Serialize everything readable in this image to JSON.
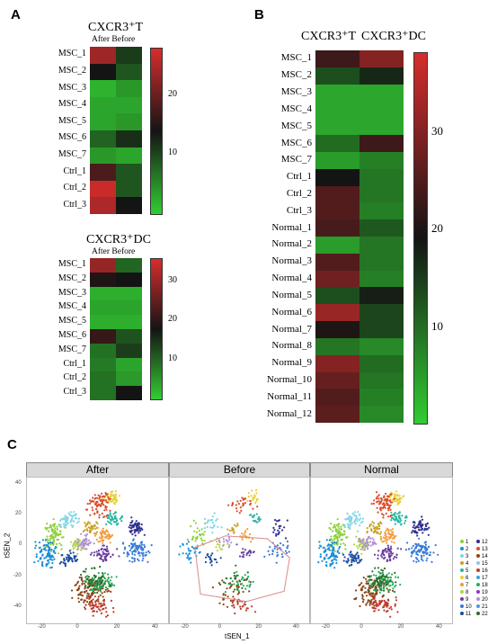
{
  "panels": {
    "a": "A",
    "b": "B",
    "c": "C"
  },
  "heatmap_a1": {
    "title": "CXCR3⁺T",
    "subtitle": "After Before",
    "rows": [
      "MSC_1",
      "MSC_2",
      "MSC_3",
      "MSC_4",
      "MSC_5",
      "MSC_6",
      "MSC_7",
      "Ctrl_1",
      "Ctrl_2",
      "Ctrl_3"
    ],
    "values": [
      [
        24,
        11
      ],
      [
        14,
        9
      ],
      [
        2,
        4
      ],
      [
        3,
        3
      ],
      [
        3,
        4
      ],
      [
        8,
        12
      ],
      [
        4,
        3
      ],
      [
        18,
        9
      ],
      [
        27,
        9
      ],
      [
        25,
        14
      ]
    ],
    "scale": {
      "min": 0,
      "max": 28,
      "ticks": [
        "20",
        "10"
      ],
      "tick_values": [
        20,
        10
      ]
    }
  },
  "heatmap_a2": {
    "title": "CXCR3⁺DC",
    "subtitle": "After Before",
    "rows": [
      "MSC_1",
      "MSC_2",
      "MSC_3",
      "MSC_4",
      "MSC_5",
      "MSC_6",
      "MSC_7",
      "Ctrl_1",
      "Ctrl_2",
      "Ctrl_3"
    ],
    "values": [
      [
        30,
        10
      ],
      [
        19,
        18
      ],
      [
        3,
        3
      ],
      [
        4,
        4
      ],
      [
        3,
        3
      ],
      [
        21,
        12
      ],
      [
        9,
        14
      ],
      [
        8,
        4
      ],
      [
        9,
        5
      ],
      [
        9,
        18
      ]
    ],
    "scale": {
      "min": 0,
      "max": 36,
      "ticks": [
        "30",
        "20",
        "10"
      ],
      "tick_values": [
        30,
        20,
        10
      ]
    }
  },
  "heatmap_b": {
    "col_headers": [
      "CXCR3⁺T",
      "CXCR3⁺DC"
    ],
    "rows": [
      "MSC_1",
      "MSC_2",
      "MSC_3",
      "MSC_4",
      "MSC_5",
      "MSC_6",
      "MSC_7",
      "Ctrl_1",
      "Ctrl_2",
      "Ctrl_3",
      "Normal_1",
      "Normal_2",
      "Normal_3",
      "Normal_4",
      "Normal_5",
      "Normal_6",
      "Normal_7",
      "Normal_8",
      "Normal_9",
      "Normal_10",
      "Normal_11",
      "Normal_12"
    ],
    "values": [
      [
        23,
        30
      ],
      [
        13,
        17
      ],
      [
        4,
        4
      ],
      [
        4,
        4
      ],
      [
        4,
        4
      ],
      [
        10,
        23
      ],
      [
        5,
        8
      ],
      [
        19,
        9
      ],
      [
        25,
        9
      ],
      [
        25,
        8
      ],
      [
        24,
        12
      ],
      [
        5,
        9
      ],
      [
        25,
        9
      ],
      [
        28,
        8
      ],
      [
        13,
        18
      ],
      [
        32,
        14
      ],
      [
        20,
        14
      ],
      [
        9,
        7
      ],
      [
        30,
        10
      ],
      [
        27,
        9
      ],
      [
        25,
        8
      ],
      [
        26,
        7
      ]
    ],
    "scale": {
      "min": 0,
      "max": 38,
      "ticks": [
        "30",
        "20",
        "10"
      ],
      "tick_values": [
        30,
        20,
        10
      ]
    }
  },
  "tsne": {
    "facets": [
      "After",
      "Before",
      "Normal"
    ],
    "xlabel": "tSEN_1",
    "ylabel": "tSEN_2",
    "yticks": [
      "40",
      "20",
      "0",
      "-20",
      "-40"
    ],
    "xticks": [
      "-20",
      "0",
      "20",
      "40"
    ],
    "legend": [
      "1",
      "2",
      "3",
      "4",
      "5",
      "6",
      "7",
      "8",
      "9",
      "10",
      "11",
      "12",
      "13",
      "14",
      "15",
      "16",
      "17",
      "18",
      "19",
      "20",
      "21",
      "22"
    ],
    "legend_colors": [
      "#8fce3f",
      "#1a8fd6",
      "#7ed6e6",
      "#c9a227",
      "#2ab5a0",
      "#e8d03a",
      "#f39c3c",
      "#b0d44a",
      "#6b3fa0",
      "#3a7bd5",
      "#1a4aa0",
      "#2e2e8e",
      "#d94c2a",
      "#8b4513",
      "#9ac0e8",
      "#c0392b",
      "#3fa0d6",
      "#27ae60",
      "#8e2ddb",
      "#b08ed6",
      "#4a9ad6",
      "#2c6e2c"
    ]
  }
}
